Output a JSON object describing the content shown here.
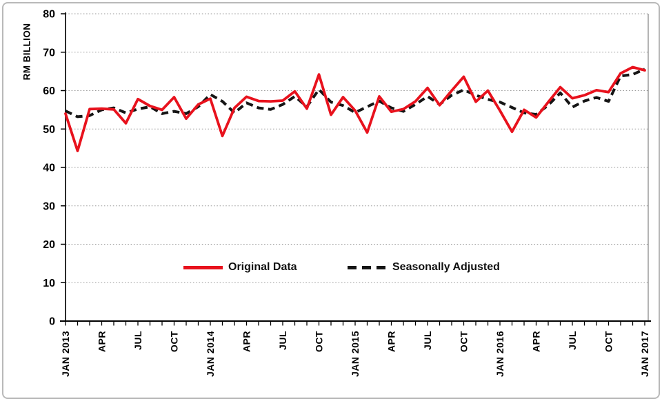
{
  "colors": {
    "original_line": "#e8121d",
    "adjusted_line": "#151515",
    "gridline": "#9a9a9a",
    "axis": "#000000",
    "right_spine": "#8c8c8c",
    "frame_border": "#b9b9b9"
  },
  "chart_data": {
    "type": "line",
    "title": "",
    "xlabel": "",
    "ylabel": "RM BILLION",
    "ylim": [
      0,
      80
    ],
    "yticks": [
      0,
      10,
      20,
      30,
      40,
      50,
      60,
      70,
      80
    ],
    "grid": "horizontal-dotted",
    "legend_position": "inside-lower-center",
    "x_unit": "month",
    "x_range": [
      "JAN 2013",
      "JAN 2017"
    ],
    "x_tick_labels": [
      "JAN 2013",
      "APR",
      "JUL",
      "OCT",
      "JAN 2014",
      "APR",
      "JUL",
      "OCT",
      "JAN 2015",
      "APR",
      "JUL",
      "OCT",
      "JAN 2016",
      "APR",
      "JUL",
      "OCT",
      "JAN 2017"
    ],
    "x_tick_label_every_n_months": 3,
    "minor_ticks": "every month",
    "series": [
      {
        "name": "Original Data",
        "style": "solid",
        "color": "#e8121d",
        "values": [
          54.0,
          44.3,
          55.2,
          55.3,
          55.1,
          51.5,
          57.8,
          56.0,
          55.0,
          58.3,
          52.7,
          56.4,
          57.9,
          48.2,
          55.5,
          58.4,
          57.3,
          57.2,
          57.4,
          59.8,
          55.3,
          64.2,
          53.7,
          58.3,
          54.8,
          49.1,
          58.5,
          54.5,
          55.2,
          57.2,
          60.7,
          56.2,
          60.0,
          63.6,
          57.1,
          60.0,
          54.8,
          49.3,
          55.0,
          53.0,
          57.0,
          60.9,
          58.0,
          58.8,
          60.1,
          59.6,
          64.5,
          66.1,
          65.3
        ]
      },
      {
        "name": "Seasonally Adjusted",
        "style": "dashed",
        "color": "#151515",
        "values": [
          54.7,
          53.2,
          53.5,
          55.0,
          55.5,
          54.2,
          55.2,
          55.8,
          54.0,
          54.6,
          54.0,
          55.8,
          59.0,
          57.2,
          54.2,
          56.8,
          55.5,
          55.1,
          56.4,
          58.5,
          55.8,
          60.3,
          57.0,
          56.1,
          54.3,
          55.8,
          57.3,
          55.5,
          54.6,
          56.4,
          58.5,
          56.4,
          58.8,
          60.2,
          58.8,
          57.7,
          57.0,
          55.6,
          54.2,
          53.8,
          56.2,
          59.4,
          55.7,
          57.3,
          58.2,
          57.2,
          63.8,
          64.2,
          65.6
        ]
      }
    ]
  }
}
